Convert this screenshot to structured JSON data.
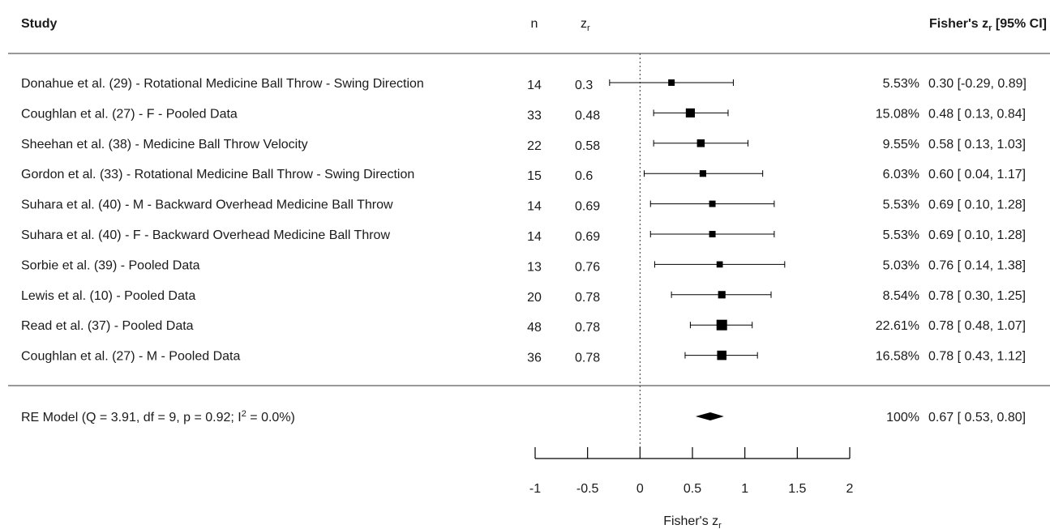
{
  "chart_data": {
    "type": "forest",
    "headers": {
      "study": "Study",
      "n": "n",
      "zr": "z",
      "zr_sub": "r",
      "ci_prefix": "Fisher's z",
      "ci_sub": "r",
      "ci_suffix": " [95% CI]"
    },
    "studies": [
      {
        "label": "Donahue et al. (29) - Rotational Medicine Ball Throw - Swing Direction",
        "n": "14",
        "zr": "0.3",
        "estimate": 0.3,
        "lower": -0.29,
        "upper": 0.89,
        "weight": "5.53%",
        "ci_text": "0.30 [-0.29, 0.89]"
      },
      {
        "label": "Coughlan et al. (27) - F - Pooled Data",
        "n": "33",
        "zr": "0.48",
        "estimate": 0.48,
        "lower": 0.13,
        "upper": 0.84,
        "weight": "15.08%",
        "ci_text": "0.48 [ 0.13, 0.84]"
      },
      {
        "label": "Sheehan et al. (38) - Medicine Ball Throw Velocity",
        "n": "22",
        "zr": "0.58",
        "estimate": 0.58,
        "lower": 0.13,
        "upper": 1.03,
        "weight": "9.55%",
        "ci_text": "0.58 [ 0.13, 1.03]"
      },
      {
        "label": "Gordon et al. (33) - Rotational Medicine Ball Throw - Swing Direction",
        "n": "15",
        "zr": "0.6",
        "estimate": 0.6,
        "lower": 0.04,
        "upper": 1.17,
        "weight": "6.03%",
        "ci_text": "0.60 [ 0.04, 1.17]"
      },
      {
        "label": "Suhara et al. (40) - M - Backward Overhead Medicine Ball Throw",
        "n": "14",
        "zr": "0.69",
        "estimate": 0.69,
        "lower": 0.1,
        "upper": 1.28,
        "weight": "5.53%",
        "ci_text": "0.69 [ 0.10, 1.28]"
      },
      {
        "label": "Suhara et al. (40) - F - Backward Overhead Medicine Ball Throw",
        "n": "14",
        "zr": "0.69",
        "estimate": 0.69,
        "lower": 0.1,
        "upper": 1.28,
        "weight": "5.53%",
        "ci_text": "0.69 [ 0.10, 1.28]"
      },
      {
        "label": "Sorbie et al. (39) - Pooled Data",
        "n": "13",
        "zr": "0.76",
        "estimate": 0.76,
        "lower": 0.14,
        "upper": 1.38,
        "weight": "5.03%",
        "ci_text": "0.76 [ 0.14, 1.38]"
      },
      {
        "label": "Lewis et al. (10) - Pooled Data",
        "n": "20",
        "zr": "0.78",
        "estimate": 0.78,
        "lower": 0.3,
        "upper": 1.25,
        "weight": "8.54%",
        "ci_text": "0.78 [ 0.30, 1.25]"
      },
      {
        "label": "Read et al. (37) - Pooled Data",
        "n": "48",
        "zr": "0.78",
        "estimate": 0.78,
        "lower": 0.48,
        "upper": 1.07,
        "weight": "22.61%",
        "ci_text": "0.78 [ 0.48, 1.07]"
      },
      {
        "label": "Coughlan et al. (27) - M - Pooled Data",
        "n": "36",
        "zr": "0.78",
        "estimate": 0.78,
        "lower": 0.43,
        "upper": 1.12,
        "weight": "16.58%",
        "ci_text": "0.78 [ 0.43, 1.12]"
      }
    ],
    "summary": {
      "label_prefix": "RE Model (Q = 3.91, df = 9, p = 0.92; I",
      "label_sup": "2",
      "label_suffix": " = 0.0%)",
      "estimate": 0.67,
      "lower": 0.53,
      "upper": 0.8,
      "weight": "100%",
      "ci_text": "0.67 [ 0.53, 0.80]"
    },
    "x_axis": {
      "label_prefix": "Fisher's z",
      "label_sub": "r",
      "ticks": [
        -1,
        -0.5,
        0,
        0.5,
        1,
        1.5,
        2
      ],
      "tick_labels": [
        "-1",
        "-0.5",
        "0",
        "0.5",
        "1",
        "1.5",
        "2"
      ],
      "range": [
        -1,
        2
      ]
    },
    "reference_line": 0
  }
}
